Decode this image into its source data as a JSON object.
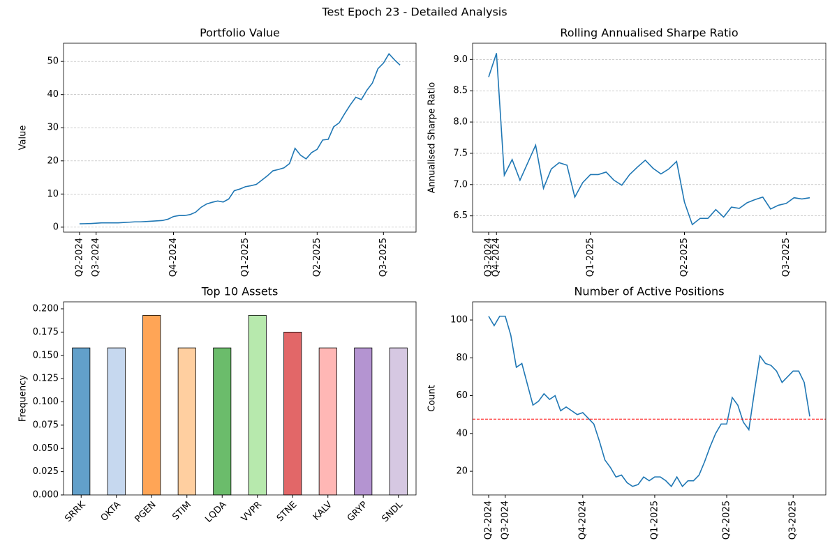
{
  "title": "Test Epoch 23 - Detailed Analysis",
  "chart_data": [
    {
      "type": "line",
      "title": "Portfolio Value",
      "ylabel": "Value",
      "color": "#1f77b4",
      "grid": true,
      "categories": [
        "Q2-2024",
        null,
        null,
        "Q3-2024",
        null,
        null,
        null,
        null,
        null,
        null,
        null,
        null,
        null,
        null,
        null,
        null,
        null,
        "Q4-2024",
        null,
        null,
        null,
        null,
        null,
        null,
        null,
        null,
        null,
        null,
        null,
        null,
        "Q1-2025",
        null,
        null,
        null,
        null,
        null,
        null,
        null,
        null,
        null,
        null,
        null,
        null,
        "Q2-2025",
        null,
        null,
        null,
        null,
        null,
        null,
        null,
        null,
        null,
        null,
        null,
        "Q3-2025",
        null,
        null,
        null
      ],
      "values": [
        1.0,
        1.05,
        1.1,
        1.2,
        1.3,
        1.3,
        1.3,
        1.3,
        1.4,
        1.5,
        1.6,
        1.6,
        1.7,
        1.8,
        1.9,
        2.0,
        2.4,
        3.2,
        3.5,
        3.5,
        3.8,
        4.5,
        6.0,
        7.0,
        7.5,
        7.9,
        7.6,
        8.5,
        11.0,
        11.5,
        12.2,
        12.5,
        12.9,
        14.2,
        15.5,
        17.0,
        17.4,
        17.9,
        19.2,
        23.8,
        21.7,
        20.6,
        22.5,
        23.5,
        26.3,
        26.5,
        30.3,
        31.5,
        34.3,
        36.9,
        39.2,
        38.5,
        41.3,
        43.5,
        47.8,
        49.5,
        52.3,
        50.5,
        48.9
      ],
      "ylim": [
        -1.5,
        55.5
      ],
      "yticks": [
        0,
        10,
        20,
        30,
        40,
        50
      ]
    },
    {
      "type": "line",
      "title": "Rolling Annualised Sharpe Ratio",
      "ylabel": "Annualised Sharpe Ratio",
      "color": "#1f77b4",
      "grid": true,
      "categories": [
        "Q3-2024",
        "Q4-2024",
        null,
        null,
        null,
        null,
        null,
        null,
        null,
        null,
        null,
        null,
        null,
        "Q1-2025",
        null,
        null,
        null,
        null,
        null,
        null,
        null,
        null,
        null,
        null,
        null,
        "Q2-2025",
        null,
        null,
        null,
        null,
        null,
        null,
        null,
        null,
        null,
        null,
        null,
        null,
        "Q3-2025",
        null,
        null,
        null
      ],
      "values": [
        8.72,
        9.1,
        7.15,
        7.4,
        7.07,
        7.35,
        7.63,
        6.94,
        7.25,
        7.35,
        7.31,
        6.8,
        7.03,
        7.16,
        7.16,
        7.2,
        7.07,
        6.99,
        7.16,
        7.28,
        7.39,
        7.26,
        7.17,
        7.25,
        7.37,
        6.72,
        6.36,
        6.46,
        6.46,
        6.6,
        6.48,
        6.64,
        6.62,
        6.71,
        6.76,
        6.8,
        6.61,
        6.67,
        6.7,
        6.79,
        6.77,
        6.79
      ],
      "ylim": [
        6.24,
        9.26
      ],
      "yticks": [
        6.5,
        {
          "value": 7,
          "label": "7.0"
        },
        7.5,
        {
          "value": 8,
          "label": "8.0"
        },
        8.5,
        {
          "value": 9,
          "label": "9.0"
        }
      ]
    },
    {
      "type": "bar",
      "title": "Top 10 Assets",
      "ylabel": "Frequency",
      "categories": [
        "SRRK",
        "OKTA",
        "PGEN",
        "STIM",
        "LQDA",
        "VVPR",
        "STNE",
        "KALV",
        "GRYP",
        "SNDL"
      ],
      "values": [
        0.158,
        0.158,
        0.193,
        0.158,
        0.158,
        0.193,
        0.175,
        0.158,
        0.158,
        0.158
      ],
      "colors": [
        "#1f77b4",
        "#aec7e8",
        "#ff7f0e",
        "#ffbb78",
        "#2ca02c",
        "#98df8a",
        "#d62728",
        "#ff9896",
        "#9467bd",
        "#c5b0d5"
      ],
      "ylim": [
        0,
        0.2075
      ],
      "yticks": [
        {
          "value": 0,
          "label": "0.000"
        },
        0.025,
        {
          "value": 0.05,
          "label": "0.050"
        },
        0.075,
        {
          "value": 0.1,
          "label": "0.100"
        },
        0.125,
        {
          "value": 0.15,
          "label": "0.150"
        },
        0.175,
        {
          "value": 0.2,
          "label": "0.200"
        }
      ]
    },
    {
      "type": "line",
      "title": "Number of Active Positions",
      "ylabel": "Count",
      "color": "#1f77b4",
      "grid": false,
      "categories": [
        "Q2-2024",
        null,
        null,
        "Q3-2024",
        null,
        null,
        null,
        null,
        null,
        null,
        null,
        null,
        null,
        null,
        null,
        null,
        null,
        "Q4-2024",
        null,
        null,
        null,
        null,
        null,
        null,
        null,
        null,
        null,
        null,
        null,
        null,
        "Q1-2025",
        null,
        null,
        null,
        null,
        null,
        null,
        null,
        null,
        null,
        null,
        null,
        null,
        "Q2-2025",
        null,
        null,
        null,
        null,
        null,
        null,
        null,
        null,
        null,
        null,
        null,
        "Q3-2025",
        null,
        null,
        null
      ],
      "values": [
        102,
        97,
        102,
        102,
        92,
        75,
        77,
        66,
        55,
        57,
        61,
        58,
        60,
        52,
        54,
        52,
        50,
        51,
        48,
        45,
        36,
        26,
        22,
        17,
        18,
        14,
        12,
        13,
        17,
        15,
        17,
        17,
        15,
        12,
        17,
        12,
        15,
        15,
        18,
        25,
        33,
        40,
        45,
        45,
        59,
        55,
        46,
        42,
        62,
        81,
        77,
        76,
        73,
        67,
        70,
        73,
        73,
        67,
        49
      ],
      "hline": {
        "value": 47.6,
        "color": "red"
      },
      "ylim": [
        7.5,
        109.6
      ],
      "yticks": [
        20,
        40,
        60,
        80,
        100
      ]
    }
  ]
}
